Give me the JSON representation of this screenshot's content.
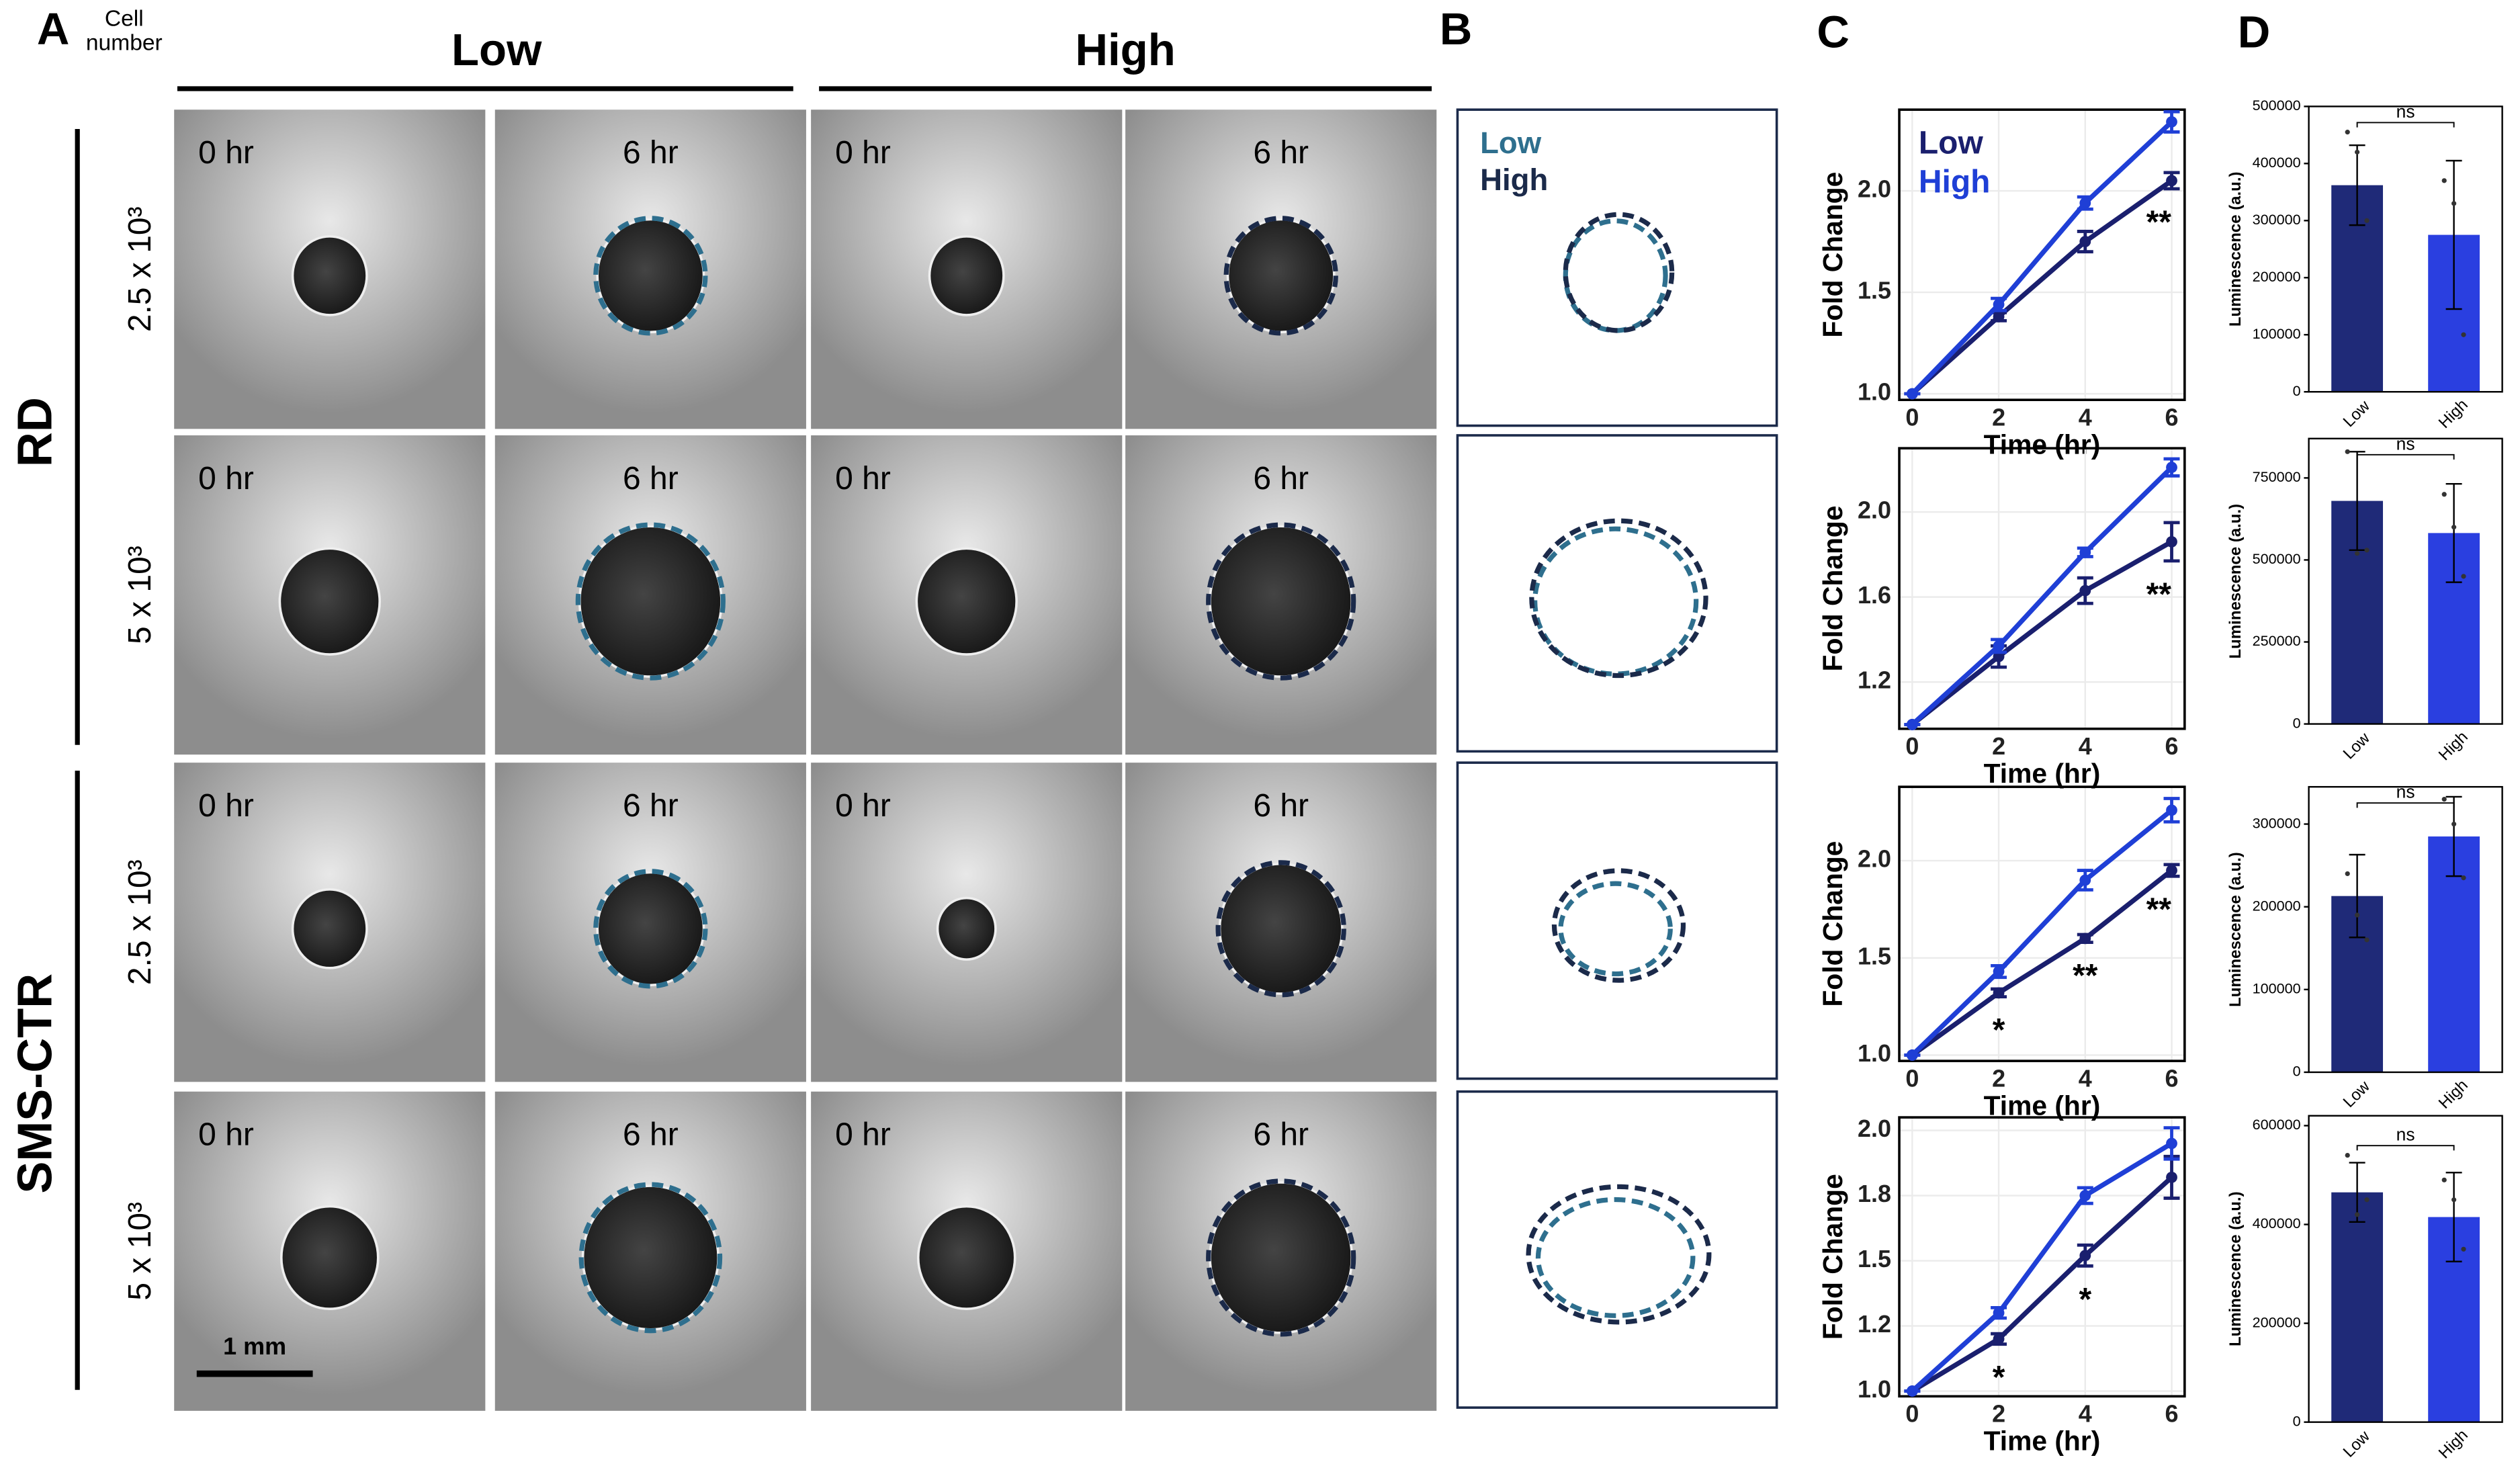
{
  "panel_labels": [
    "A",
    "B",
    "C",
    "D"
  ],
  "panel_a": {
    "cell_number_label": "Cell number",
    "groups": [
      "Low",
      "High"
    ],
    "times": [
      "0 hr",
      "6 hr"
    ],
    "cell_lines": [
      "RD",
      "SMS-CTR"
    ],
    "seeding": [
      "2.5 x 10³",
      "5 x 10³"
    ],
    "scale_bar": "1 mm"
  },
  "panel_b": {
    "legend": [
      "Low",
      "High"
    ],
    "colors": [
      "#2e6f8e",
      "#1b2a4a"
    ]
  },
  "chart_data": [
    {
      "type": "line",
      "xlabel": "Time (hr)",
      "ylabel": "Fold Change",
      "x": [
        0,
        2,
        4,
        6
      ],
      "xlim": [
        -0.3,
        6.3
      ],
      "xticks": [
        0,
        2,
        4,
        6
      ],
      "ylim": [
        0.97,
        2.4
      ],
      "yticks": [
        {
          "value": 1,
          "label": "1.0"
        },
        1.5,
        {
          "value": 2,
          "label": "2.0"
        }
      ],
      "grid": true,
      "legend": true,
      "series": [
        {
          "name": "Low",
          "color": "#1a1f6e",
          "values": [
            1,
            1.38,
            1.75,
            2.05
          ],
          "errors": [
            0,
            0.02,
            0.05,
            0.04
          ]
        },
        {
          "name": "High",
          "color": "#1f3fd6",
          "values": [
            1,
            1.44,
            1.94,
            2.34
          ],
          "errors": [
            0,
            0.03,
            0.03,
            0.05
          ]
        }
      ],
      "annotations": [
        {
          "x": 6,
          "text": "**"
        }
      ]
    },
    {
      "type": "line",
      "xlabel": "Time (hr)",
      "ylabel": "Fold Change",
      "x": [
        0,
        2,
        4,
        6
      ],
      "xlim": [
        -0.3,
        6.3
      ],
      "xticks": [
        0,
        2,
        4,
        6
      ],
      "ylim": [
        0.98,
        2.3
      ],
      "yticks": [
        1.2,
        1.6,
        {
          "value": 2,
          "label": "2.0"
        }
      ],
      "grid": true,
      "legend": false,
      "series": [
        {
          "name": "Low",
          "color": "#1a1f6e",
          "values": [
            1,
            1.32,
            1.63,
            1.86
          ],
          "errors": [
            0,
            0.05,
            0.06,
            0.09
          ]
        },
        {
          "name": "High",
          "color": "#1f3fd6",
          "values": [
            1,
            1.37,
            1.81,
            2.21
          ],
          "errors": [
            0,
            0.03,
            0.02,
            0.04
          ]
        }
      ],
      "annotations": [
        {
          "x": 6,
          "text": "**"
        }
      ]
    },
    {
      "type": "line",
      "xlabel": "Time (hr)",
      "ylabel": "Fold Change",
      "x": [
        0,
        2,
        4,
        6
      ],
      "xlim": [
        -0.3,
        6.3
      ],
      "xticks": [
        0,
        2,
        4,
        6
      ],
      "ylim": [
        0.97,
        2.38
      ],
      "yticks": [
        {
          "value": 1,
          "label": "1.0"
        },
        1.5,
        {
          "value": 2,
          "label": "2.0"
        }
      ],
      "grid": true,
      "legend": false,
      "series": [
        {
          "name": "Low",
          "color": "#1a1f6e",
          "values": [
            1,
            1.32,
            1.6,
            1.95
          ],
          "errors": [
            0,
            0.02,
            0.02,
            0.03
          ]
        },
        {
          "name": "High",
          "color": "#1f3fd6",
          "values": [
            1,
            1.43,
            1.9,
            2.26
          ],
          "errors": [
            0,
            0.03,
            0.05,
            0.06
          ]
        }
      ],
      "annotations": [
        {
          "x": 2,
          "text": "*"
        },
        {
          "x": 4,
          "text": "**"
        },
        {
          "x": 6,
          "text": "**"
        }
      ]
    },
    {
      "type": "line",
      "xlabel": "Time (hr)",
      "ylabel": "Fold Change",
      "x": [
        0,
        2,
        4,
        6
      ],
      "xlim": [
        -0.3,
        6.3
      ],
      "xticks": [
        0,
        2,
        4,
        6
      ],
      "ylim": [
        0.98,
        2.05
      ],
      "yticks": [
        {
          "value": 1,
          "label": "1.0"
        },
        {
          "value": 1.25,
          "label": "1.2"
        },
        1.5,
        {
          "value": 1.75,
          "label": "1.8"
        },
        {
          "value": 2,
          "label": "2.0"
        }
      ],
      "grid": true,
      "legend": false,
      "series": [
        {
          "name": "Low",
          "color": "#1a1f6e",
          "values": [
            1,
            1.2,
            1.52,
            1.82
          ],
          "errors": [
            0,
            0.02,
            0.04,
            0.08
          ]
        },
        {
          "name": "High",
          "color": "#1f3fd6",
          "values": [
            1,
            1.3,
            1.75,
            1.95
          ],
          "errors": [
            0,
            0.02,
            0.03,
            0.06
          ]
        }
      ],
      "annotations": [
        {
          "x": 2,
          "text": "*"
        },
        {
          "x": 4,
          "text": "*"
        }
      ]
    },
    {
      "type": "bar",
      "ylabel": "Luminescence (a.u.)",
      "categories": [
        "Low",
        "High"
      ],
      "colors": [
        "#1f2a78",
        "#2a3fe0"
      ],
      "values": [
        362000,
        275000
      ],
      "errors": [
        70000,
        130000
      ],
      "points": [
        [
          455000,
          420000,
          300000
        ],
        [
          370000,
          330000,
          100000
        ]
      ],
      "ylim": [
        0,
        500000
      ],
      "yticks": [
        0,
        100000,
        200000,
        300000,
        400000,
        500000
      ],
      "annotation": "ns"
    },
    {
      "type": "bar",
      "ylabel": "Luminescence (a.u.)",
      "categories": [
        "Low",
        "High"
      ],
      "colors": [
        "#1f2a78",
        "#2a3fe0"
      ],
      "values": [
        680000,
        582000
      ],
      "errors": [
        150000,
        150000
      ],
      "points": [
        [
          830000,
          520000,
          530000
        ],
        [
          700000,
          600000,
          450000
        ]
      ],
      "ylim": [
        0,
        870000
      ],
      "yticks": [
        0,
        250000,
        500000,
        750000
      ],
      "annotation": "ns"
    },
    {
      "type": "bar",
      "ylabel": "Luminescence (a.u.)",
      "categories": [
        "Low",
        "High"
      ],
      "colors": [
        "#1f2a78",
        "#2a3fe0"
      ],
      "values": [
        213000,
        285000
      ],
      "errors": [
        50000,
        48000
      ],
      "points": [
        [
          240000,
          190000,
          160000
        ],
        [
          330000,
          300000,
          235000
        ]
      ],
      "ylim": [
        0,
        345000
      ],
      "yticks": [
        0,
        100000,
        200000,
        300000
      ],
      "annotation": "ns"
    },
    {
      "type": "bar",
      "ylabel": "Luminescence (a.u.)",
      "categories": [
        "Low",
        "High"
      ],
      "colors": [
        "#1f2a78",
        "#2a3fe0"
      ],
      "values": [
        465000,
        415000
      ],
      "errors": [
        60000,
        90000
      ],
      "points": [
        [
          540000,
          420000,
          450000
        ],
        [
          490000,
          450000,
          350000
        ]
      ],
      "ylim": [
        0,
        620000
      ],
      "yticks": [
        0,
        200000,
        400000,
        600000
      ],
      "annotation": "ns"
    }
  ]
}
